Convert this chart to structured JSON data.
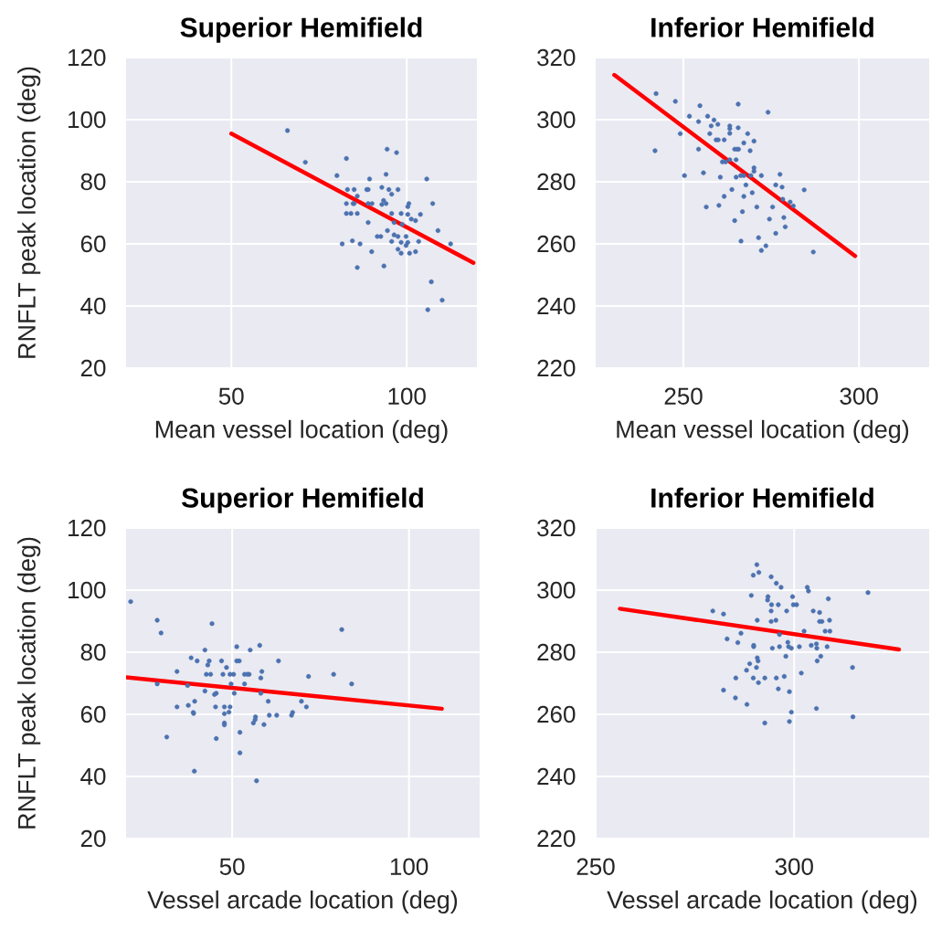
{
  "chart_data": [
    {
      "type": "scatter",
      "title": "Superior Hemifield",
      "xlabel": "Mean vessel location (deg)",
      "ylabel": "RNFLT peak location (deg)",
      "xlim": [
        20,
        120
      ],
      "ylim": [
        20,
        120
      ],
      "xticks": [
        50,
        100
      ],
      "yticks": [
        20,
        40,
        60,
        80,
        100,
        120
      ],
      "grid": true,
      "series": [
        {
          "marker": "circle",
          "color": "#4c72b0",
          "x": [
            66.0,
            71.1,
            82.8,
            80.1,
            89.4,
            94.4,
            97.1,
            94.1,
            105.7,
            83.1,
            85.0,
            88.6,
            89.0,
            92.9,
            94.9,
            97.5,
            95.7,
            85.9,
            82.8,
            84.7,
            85.0,
            89.0,
            90.1,
            92.9,
            93.4,
            94.1,
            100.6,
            100.3,
            107.4,
            82.8,
            84.1,
            85.9,
            95.7,
            98.4,
            100.3,
            103.9,
            101.3,
            102.5,
            89.0,
            96.4,
            98.7,
            94.5,
            108.9,
            91.6,
            92.6,
            96.4,
            97.5,
            99.8,
            95.7,
            98.4,
            100.3,
            99.8,
            103.4,
            81.6,
            84.5,
            86.7,
            112.5,
            97.5,
            98.4,
            100.8,
            102.5,
            90.0,
            85.9,
            93.5,
            107.0,
            110.1,
            106.0
          ],
          "values": [
            96.5,
            86.3,
            87.5,
            82.0,
            80.9,
            90.5,
            89.4,
            82.4,
            80.9,
            77.5,
            77.5,
            77.5,
            77.5,
            78.2,
            77.5,
            77.5,
            76.0,
            75.4,
            73.0,
            73.0,
            73.0,
            73.0,
            73.0,
            72.7,
            74.0,
            73.0,
            73.0,
            72.0,
            73.0,
            69.8,
            69.8,
            69.8,
            69.8,
            69.8,
            69.5,
            69.5,
            68.0,
            67.5,
            66.9,
            66.9,
            66.3,
            64.3,
            64.3,
            62.4,
            62.4,
            62.9,
            62.4,
            62.4,
            60.8,
            60.5,
            60.5,
            59.5,
            60.8,
            60.0,
            61.0,
            60.0,
            60.0,
            58.3,
            57.0,
            57.0,
            57.5,
            57.5,
            52.4,
            52.9,
            47.8,
            41.9,
            38.8
          ]
        },
        {
          "type": "line",
          "marker": "none",
          "color": "#ff0000",
          "x": [
            50,
            119
          ],
          "values": [
            95.5,
            53.9
          ]
        }
      ]
    },
    {
      "type": "scatter",
      "title": "Inferior Hemifield",
      "xlabel": "Mean vessel location (deg)",
      "xlim": [
        225,
        320
      ],
      "ylim": [
        220,
        320
      ],
      "xticks": [
        250,
        300
      ],
      "yticks": [
        220,
        240,
        260,
        280,
        300,
        320
      ],
      "grid": true,
      "series": [
        {
          "marker": "circle",
          "color": "#4c72b0",
          "x": [
            242.2,
            247.7,
            254.7,
            265.6,
            274.1,
            251.7,
            254.3,
            256.9,
            258.7,
            259.8,
            257.9,
            263.2,
            263.2,
            263.2,
            265.6,
            268.3,
            249.1,
            257.5,
            259.3,
            259.9,
            261.6,
            267.2,
            270.1,
            241.9,
            254.3,
            264.6,
            265.3,
            265.7,
            269.0,
            261.1,
            262.0,
            263.2,
            265.0,
            250.3,
            255.7,
            260.5,
            265.0,
            266.3,
            267.2,
            270.1,
            270.1,
            269.2,
            272.2,
            277.5,
            267.8,
            276.3,
            278.1,
            284.4,
            263.8,
            261.6,
            267.2,
            269.6,
            278.3,
            280.4,
            281.3,
            256.5,
            260.1,
            270.9,
            275.4,
            266.8,
            278.6,
            274.5,
            279.0,
            264.6,
            276.3,
            271.4,
            266.4,
            273.5,
            272.2,
            287.0
          ],
          "values": [
            308.4,
            305.9,
            304.5,
            305.0,
            302.4,
            301.1,
            299.4,
            301.1,
            299.9,
            298.5,
            298.0,
            298.0,
            297.1,
            295.6,
            297.4,
            295.5,
            295.5,
            295.5,
            293.5,
            293.5,
            293.5,
            292.5,
            293.1,
            290.0,
            290.5,
            290.5,
            290.5,
            290.5,
            290.0,
            286.4,
            286.4,
            287.1,
            287.1,
            282.0,
            282.9,
            281.5,
            281.5,
            282.0,
            282.0,
            284.5,
            283.4,
            282.0,
            282.0,
            282.4,
            279.0,
            279.0,
            278.3,
            277.4,
            277.5,
            275.3,
            275.3,
            276.5,
            274.4,
            273.5,
            272.2,
            271.9,
            272.4,
            271.9,
            271.9,
            270.4,
            268.5,
            268.0,
            265.5,
            267.5,
            263.4,
            262.0,
            260.9,
            259.4,
            257.9,
            257.4
          ]
        },
        {
          "type": "line",
          "marker": "none",
          "color": "#ff0000",
          "x": [
            230.3,
            298.9
          ],
          "values": [
            314.4,
            256.1
          ]
        }
      ]
    },
    {
      "type": "scatter",
      "title": "Superior Hemifield",
      "xlabel": "Vessel arcade location (deg)",
      "ylabel": "RNFLT peak location (deg)",
      "xlim": [
        20,
        120
      ],
      "ylim": [
        20,
        120
      ],
      "xticks": [
        50,
        100
      ],
      "yticks": [
        20,
        40,
        60,
        80,
        100,
        120
      ],
      "grid": true,
      "series": [
        {
          "marker": "circle",
          "color": "#4c72b0",
          "x": [
            21.3,
            28.8,
            29.9,
            44.3,
            81.0,
            42.3,
            51.3,
            55.1,
            57.8,
            38.4,
            40.1,
            43.5,
            43.1,
            47.0,
            51.3,
            52.0,
            63.1,
            48.4,
            34.4,
            42.7,
            43.9,
            47.4,
            49.4,
            50.4,
            53.5,
            54.3,
            54.8,
            58.4,
            58.1,
            71.6,
            78.7,
            83.8,
            28.8,
            37.4,
            49.7,
            53.5,
            42.3,
            45.0,
            45.5,
            50.6,
            58.1,
            39.4,
            60.2,
            69.6,
            34.4,
            37.6,
            45.3,
            47.8,
            49.4,
            71.0,
            39.0,
            39.1,
            47.8,
            49.1,
            60.5,
            62.6,
            66.8,
            67.1,
            56.6,
            56.5,
            56.0,
            47.8,
            47.8,
            59.0,
            52.2,
            31.5,
            45.5,
            52.2,
            39.3,
            56.9
          ],
          "values": [
            96.3,
            90.3,
            86.2,
            89.2,
            87.3,
            80.7,
            81.8,
            80.7,
            82.2,
            78.2,
            77.2,
            77.2,
            75.9,
            77.2,
            77.2,
            77.2,
            77.2,
            75.1,
            73.8,
            72.9,
            72.9,
            72.9,
            72.9,
            72.9,
            72.9,
            72.9,
            72.9,
            73.8,
            71.7,
            72.2,
            72.9,
            69.8,
            69.8,
            69.3,
            69.8,
            69.8,
            67.5,
            66.4,
            66.8,
            66.8,
            66.8,
            64.2,
            64.2,
            64.2,
            62.4,
            62.9,
            62.4,
            62.4,
            62.4,
            62.4,
            60.6,
            60.3,
            60.2,
            60.7,
            59.7,
            59.7,
            59.7,
            60.6,
            59.2,
            58.3,
            57.2,
            57.2,
            56.6,
            56.7,
            54.2,
            52.7,
            52.2,
            47.6,
            41.7,
            38.6
          ]
        },
        {
          "type": "line",
          "marker": "none",
          "color": "#ff0000",
          "x": [
            20,
            109.3
          ],
          "values": [
            71.9,
            61.8
          ]
        }
      ]
    },
    {
      "type": "scatter",
      "title": "Inferior Hemifield",
      "xlabel": "Vessel arcade location (deg)",
      "xlim": [
        250,
        334
      ],
      "ylim": [
        220,
        320
      ],
      "xticks": [
        250,
        300
      ],
      "yticks": [
        220,
        240,
        260,
        280,
        300,
        320
      ],
      "grid": true,
      "series": [
        {
          "marker": "circle",
          "color": "#4c72b0",
          "x": [
            290.6,
            289.7,
            291.1,
            294.2,
            295.5,
            296.7,
            303.3,
            303.6,
            318.6,
            289.2,
            293.4,
            293.3,
            299.6,
            308.6,
            294.3,
            296.0,
            299.8,
            300.6,
            279.5,
            282.2,
            294.2,
            298.1,
            304.8,
            306.4,
            290.7,
            294.2,
            295.4,
            306.4,
            307.0,
            308.9,
            286.6,
            296.3,
            302.5,
            307.8,
            309.0,
            283.1,
            285.8,
            289.8,
            289.8,
            294.5,
            296.3,
            298.4,
            298.6,
            299.3,
            301.3,
            304.3,
            305.6,
            305.7,
            308.3,
            297.9,
            306.7,
            305.8,
            290.7,
            290.9,
            288.8,
            290.5,
            288.0,
            314.7,
            301.8,
            285.3,
            289.7,
            291.0,
            292.6,
            295.5,
            297.5,
            296.0,
            298.8,
            282.2,
            285.2,
            288.1,
            305.6,
            299.3,
            314.8,
            292.6,
            298.8
          ],
          "values": [
            308.2,
            304.8,
            305.7,
            304.3,
            302.2,
            300.9,
            300.9,
            299.7,
            299.2,
            298.3,
            297.9,
            296.8,
            297.9,
            297.2,
            295.3,
            295.3,
            295.3,
            295.3,
            293.3,
            292.3,
            293.3,
            293.3,
            293.3,
            292.8,
            290.3,
            289.9,
            290.3,
            289.9,
            289.9,
            290.3,
            286.1,
            285.7,
            286.8,
            286.8,
            286.8,
            284.3,
            283.1,
            282.2,
            281.8,
            281.3,
            281.8,
            283.2,
            281.8,
            281.3,
            281.8,
            282.2,
            282.7,
            281.3,
            281.8,
            278.7,
            278.7,
            277.2,
            278.2,
            277.2,
            276.3,
            275.1,
            274.2,
            275.1,
            273.3,
            271.7,
            271.7,
            270.2,
            271.7,
            271.7,
            272.2,
            268.2,
            267.3,
            267.8,
            265.3,
            263.2,
            261.9,
            260.7,
            259.2,
            257.2,
            257.7
          ]
        },
        {
          "type": "line",
          "marker": "none",
          "color": "#ff0000",
          "x": [
            256.1,
            326.4
          ],
          "values": [
            294.0,
            280.9
          ]
        }
      ]
    }
  ]
}
